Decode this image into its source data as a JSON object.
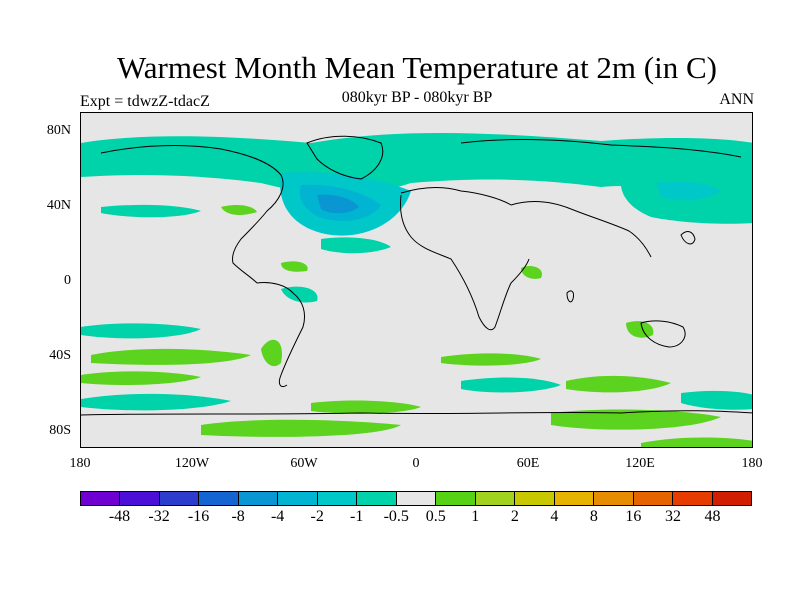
{
  "title": "Warmest Month Mean Temperature at 2m (in C)",
  "subtitle": "080kyr BP - 080kyr BP",
  "left_label": "Expt = tdwzZ-tdacZ",
  "right_label": "ANN",
  "map": {
    "projection": "cylindrical-equidistant",
    "lon_range": [
      -180,
      180
    ],
    "lat_range": [
      -90,
      90
    ],
    "background_color": "#e6e6e6",
    "lat_ticks": [
      {
        "value": 80,
        "label": "80N"
      },
      {
        "value": 40,
        "label": "40N"
      },
      {
        "value": 0,
        "label": "0"
      },
      {
        "value": -40,
        "label": "40S"
      },
      {
        "value": -80,
        "label": "80S"
      }
    ],
    "lon_ticks": [
      {
        "value": -180,
        "label": "180"
      },
      {
        "value": -120,
        "label": "120W"
      },
      {
        "value": -60,
        "label": "60W"
      },
      {
        "value": 0,
        "label": "0"
      },
      {
        "value": 60,
        "label": "60E"
      },
      {
        "value": 120,
        "label": "120E"
      },
      {
        "value": 180,
        "label": "180"
      }
    ]
  },
  "colorbar": {
    "colors": [
      "#6e00d2",
      "#4b0fd7",
      "#2d3ccd",
      "#1464d2",
      "#0a96d2",
      "#00b4d2",
      "#00c8c8",
      "#00d2aa",
      "#e6e6e6",
      "#55d214",
      "#a0d21e",
      "#c8c800",
      "#e6b400",
      "#e68c00",
      "#e66400",
      "#e63c00",
      "#d21e00"
    ],
    "labels": [
      "-48",
      "-32",
      "-16",
      "-8",
      "-4",
      "-2",
      "-1",
      "-0.5",
      "0.5",
      "1",
      "2",
      "4",
      "8",
      "16",
      "32",
      "48"
    ]
  }
}
